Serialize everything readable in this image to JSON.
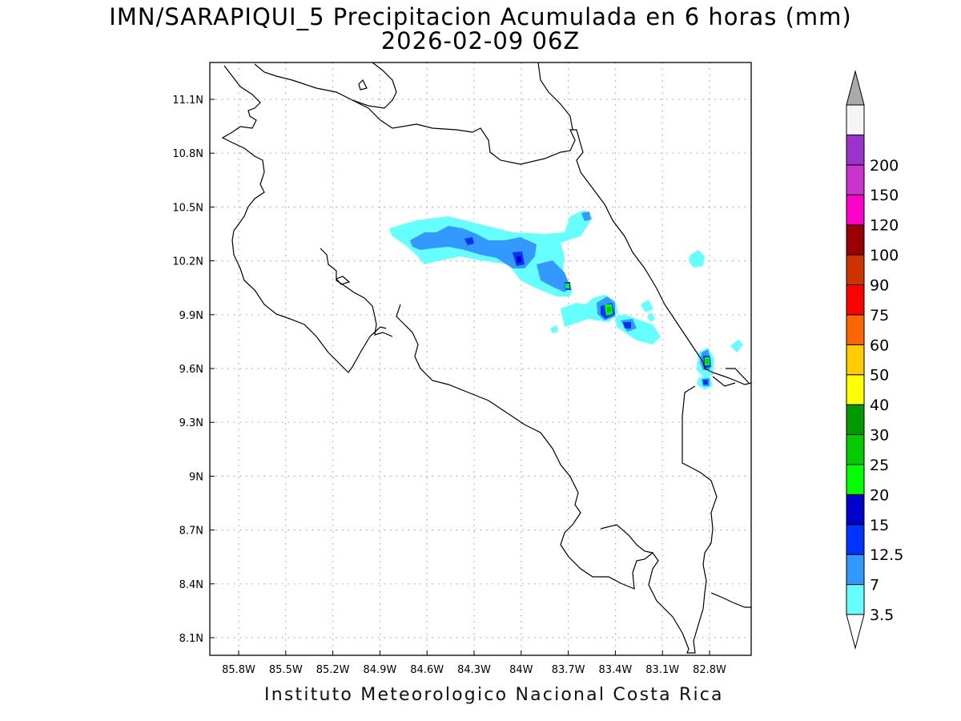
{
  "title": {
    "line1": "IMN/SARAPIQUI_5 Precipitacion Acumulada en 6 horas (mm)",
    "line2": "2026-02-09 06Z"
  },
  "footer": "Instituto Meteorologico Nacional Costa Rica",
  "axes": {
    "x_ticks": [
      "85.8W",
      "85.5W",
      "85.2W",
      "84.9W",
      "84.6W",
      "84.3W",
      "84W",
      "83.7W",
      "83.4W",
      "83.1W",
      "82.8W"
    ],
    "y_ticks": [
      "11.1N",
      "10.8N",
      "10.5N",
      "10.2N",
      "9.9N",
      "9.6N",
      "9.3N",
      "9N",
      "8.7N",
      "8.4N",
      "8.1N"
    ],
    "grid": true
  },
  "colorbar": {
    "labels": [
      "3.5",
      "7",
      "12.5",
      "15",
      "20",
      "25",
      "30",
      "40",
      "50",
      "60",
      "75",
      "90",
      "100",
      "120",
      "150",
      "200"
    ],
    "colors": [
      "#66ffff",
      "#3399ff",
      "#0033ff",
      "#0000cc",
      "#00ff00",
      "#00cc00",
      "#009900",
      "#ffff00",
      "#ffcc00",
      "#ff6600",
      "#ff0000",
      "#cc3300",
      "#990000",
      "#ff00cc",
      "#cc33cc",
      "#9933cc",
      "#f5f5f5"
    ],
    "upper_arrow_color": "#aaaaaa",
    "lower_arrow_color": "#ffffff"
  }
}
